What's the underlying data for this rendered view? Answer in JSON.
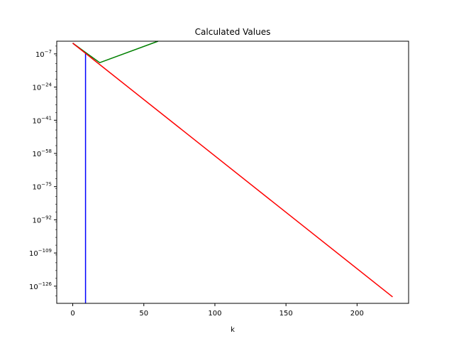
{
  "chart_data": {
    "type": "line",
    "title": "Calculated Values",
    "xlabel": "k",
    "ylabel": "",
    "yscale": "log",
    "xlim": [
      -11.25,
      236.25
    ],
    "ylim_exponent": [
      -134.8,
      -0.5
    ],
    "grid": false,
    "x_ticks": [
      0,
      50,
      100,
      150,
      200
    ],
    "x_tick_labels": [
      "0",
      "50",
      "100",
      "150",
      "200"
    ],
    "y_ticks_exponent": [
      -7,
      -24,
      -41,
      -58,
      -75,
      -92,
      -109,
      -126
    ],
    "y_tick_labels": [
      "10",
      "10",
      "10",
      "10",
      "10",
      "10",
      "10",
      "10"
    ],
    "y_tick_exponent_labels": [
      "−7",
      "−24",
      "−41",
      "−58",
      "−75",
      "−92",
      "−109",
      "−126"
    ],
    "series": [
      {
        "color": "#0000ff",
        "points_log10": [
          [
            0,
            -1.5
          ],
          [
            9,
            -6.5
          ],
          [
            9,
            -134.8
          ]
        ]
      },
      {
        "color": "#008000",
        "points_log10": [
          [
            0,
            -1.5
          ],
          [
            19,
            -11.5
          ],
          [
            60,
            -0.5
          ]
        ]
      },
      {
        "color": "#ff0000",
        "points_log10": [
          [
            0,
            -1.5
          ],
          [
            225,
            -131.5
          ]
        ]
      }
    ]
  }
}
